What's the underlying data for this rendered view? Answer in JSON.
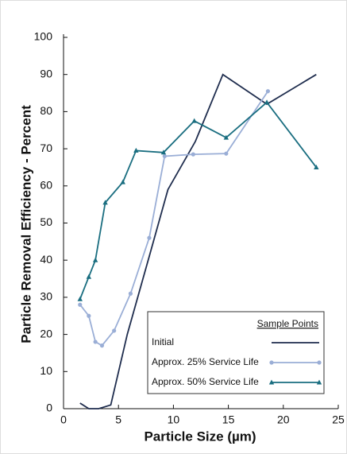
{
  "chart_data": {
    "type": "line",
    "xlabel": "Particle Size (µm)",
    "ylabel": "Particle Removal Efficiency - Percent",
    "legend_title": "Sample Points",
    "legend": "lower right",
    "xlim": [
      0,
      25
    ],
    "xticks": [
      0,
      5,
      10,
      15,
      20,
      25
    ],
    "ylim": [
      0,
      100
    ],
    "yticks": [
      0,
      10,
      20,
      30,
      40,
      50,
      60,
      70,
      80,
      90,
      100
    ],
    "series": [
      {
        "name": "Initial",
        "color": "#1f2d4e",
        "marker": "none",
        "x": [
          1.5,
          2.3,
          3.2,
          4.3,
          5.8,
          7.8,
          9.5,
          12,
          14.5,
          18.5,
          23
        ],
        "values": [
          1.5,
          0,
          0,
          1,
          20,
          41,
          59,
          72,
          90,
          82,
          90
        ]
      },
      {
        "name": "Approx. 25% Service Life",
        "color": "#9aaed6",
        "marker": "circle",
        "x": [
          1.5,
          2.3,
          2.9,
          3.5,
          4.6,
          6.1,
          7.8,
          9.2,
          11.8,
          14.8,
          18.6
        ],
        "values": [
          28,
          25,
          18,
          17,
          21,
          31,
          46,
          68,
          68.5,
          68.7,
          85.5
        ]
      },
      {
        "name": "Approx. 50% Service Life",
        "color": "#1a6e80",
        "marker": "triangle",
        "x": [
          1.5,
          2.3,
          2.9,
          3.8,
          5.4,
          6.6,
          9.1,
          11.9,
          14.8,
          18.5,
          23
        ],
        "values": [
          29.5,
          35.5,
          40,
          55.5,
          61,
          69.5,
          69,
          77.5,
          73,
          82.5,
          65
        ]
      }
    ]
  }
}
